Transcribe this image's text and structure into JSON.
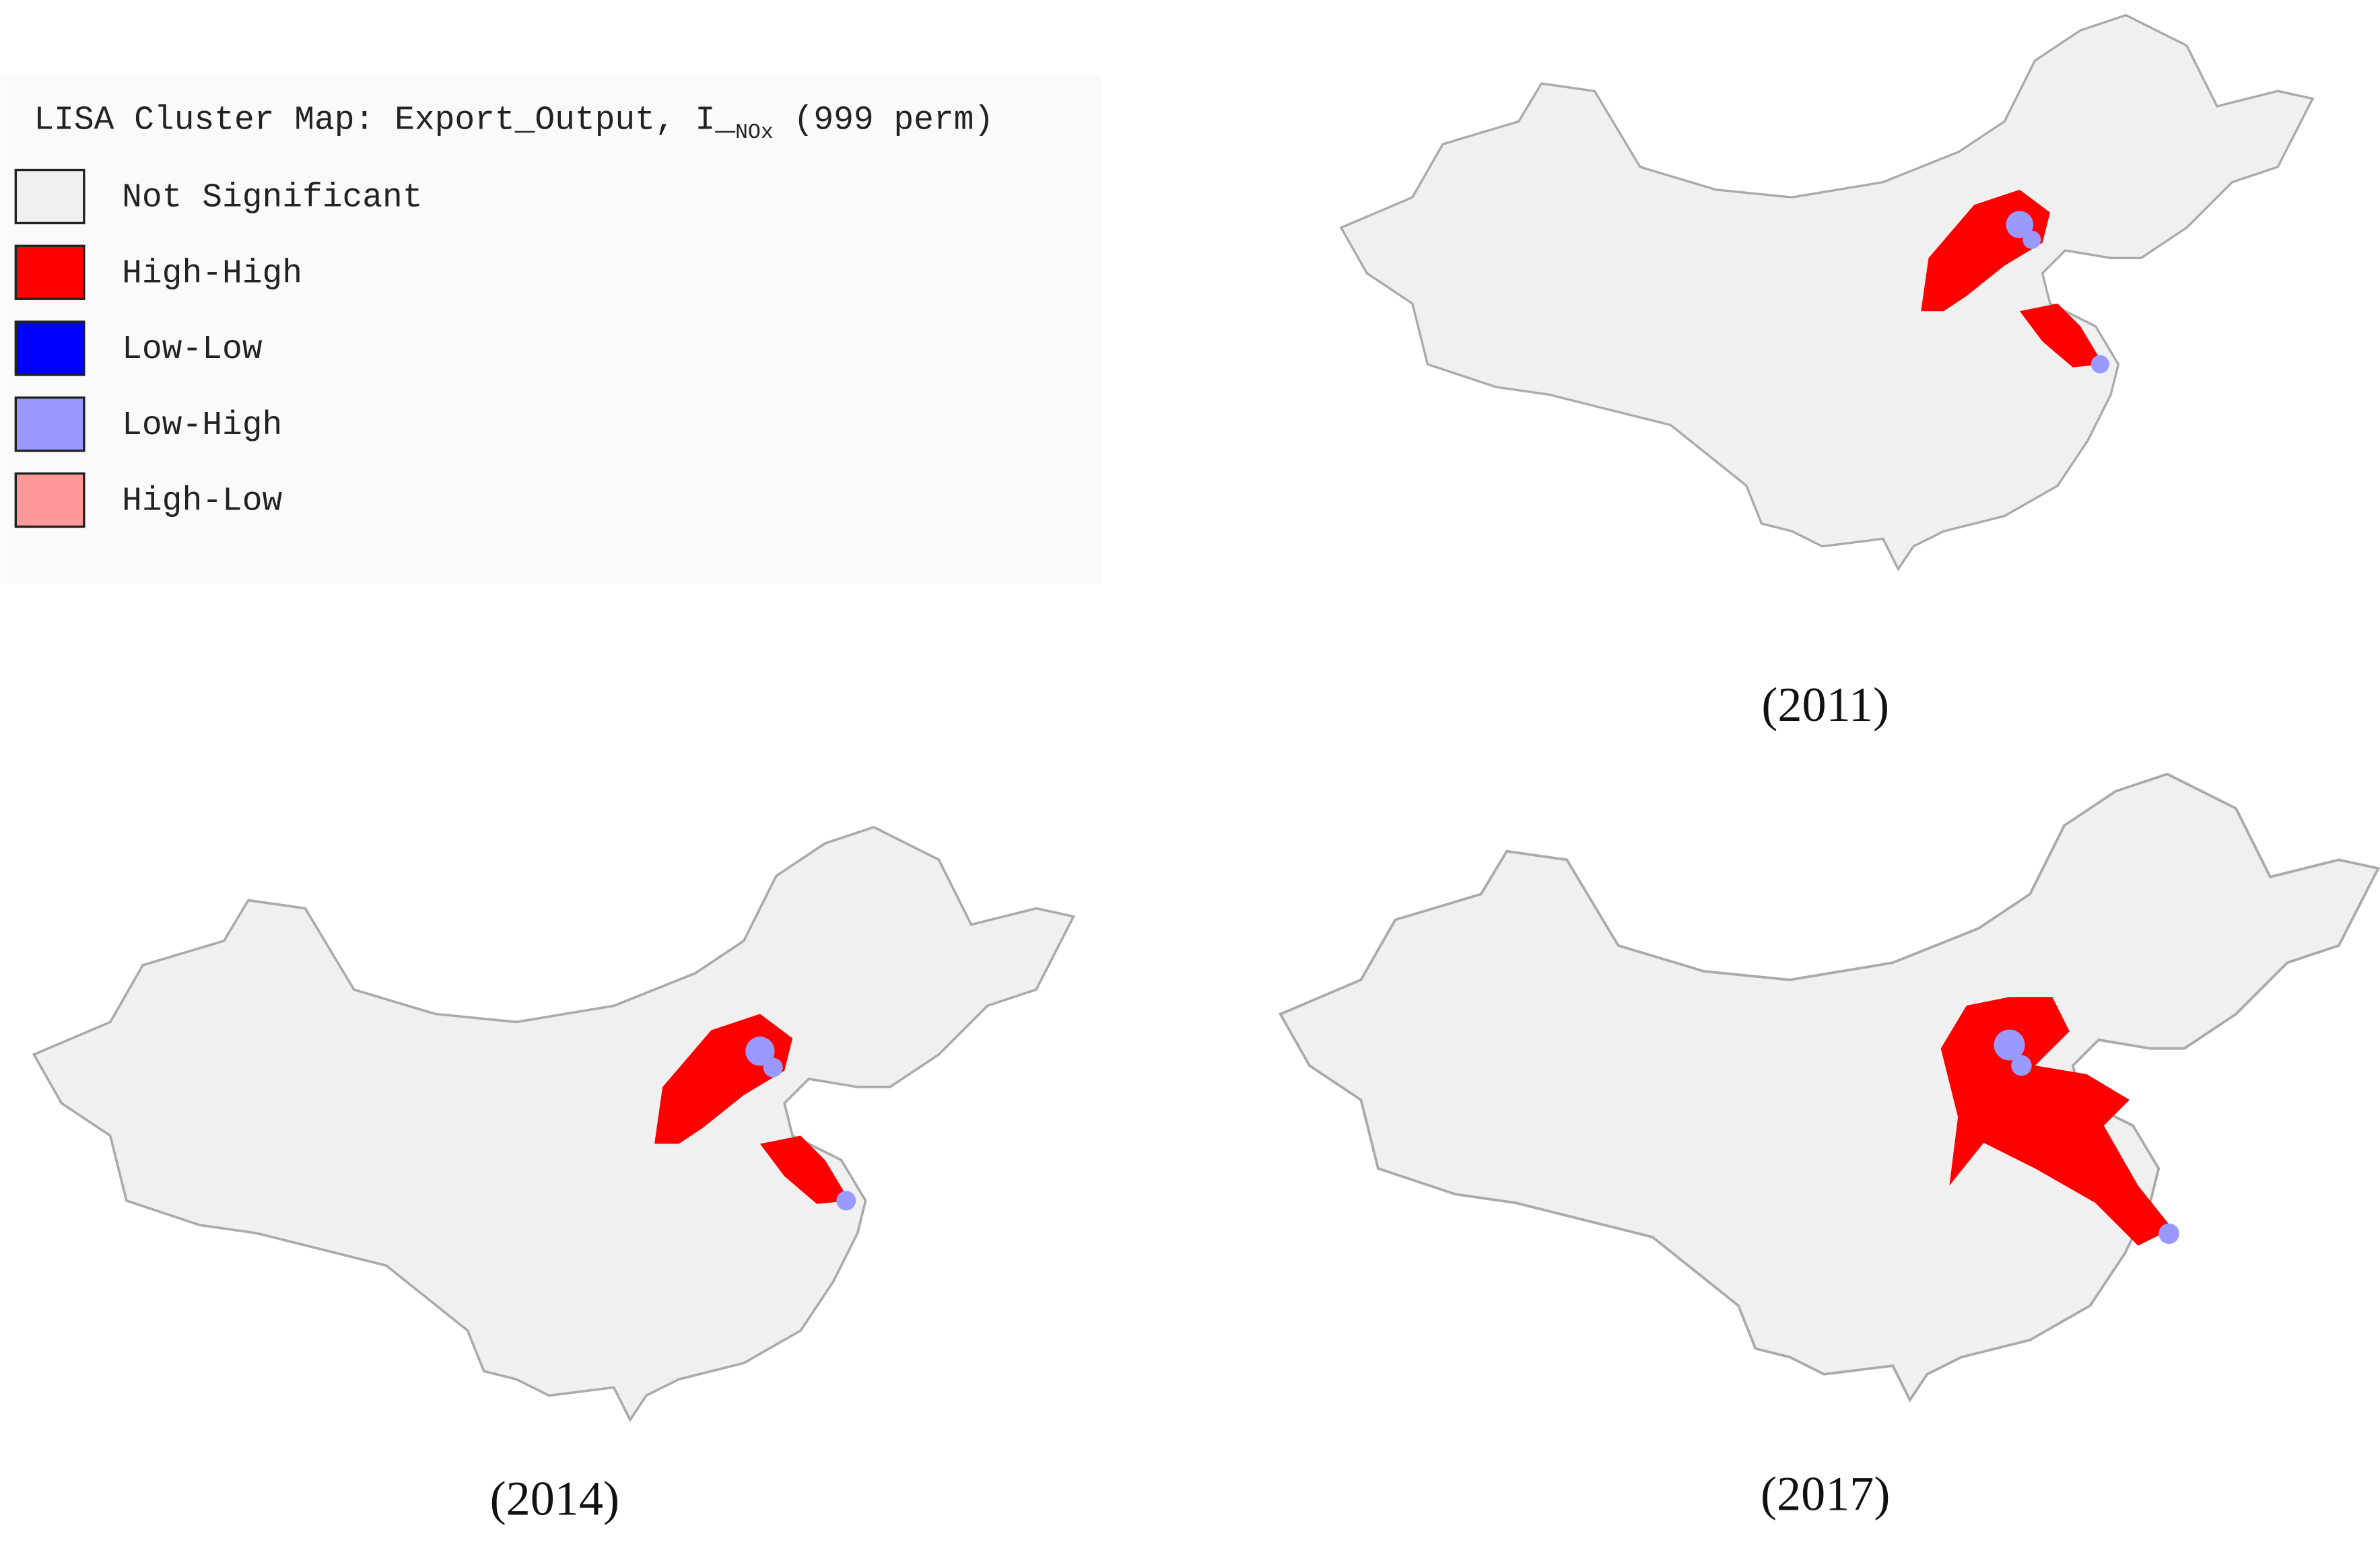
{
  "legend": {
    "title_prefix": "LISA Cluster Map: Export_Output, I_",
    "title_subscript": "NOx",
    "title_suffix": " (999 perm)",
    "items": [
      {
        "label": "Not Significant",
        "color": "#f0f0f0"
      },
      {
        "label": "High-High",
        "color": "#ff0000"
      },
      {
        "label": "Low-Low",
        "color": "#0000ff"
      },
      {
        "label": "Low-High",
        "color": "#9999ff"
      },
      {
        "label": "High-Low",
        "color": "#ff9999"
      }
    ]
  },
  "maps": [
    {
      "caption": "(2011)"
    },
    {
      "caption": "(2014)"
    },
    {
      "caption": "(2017)"
    }
  ]
}
